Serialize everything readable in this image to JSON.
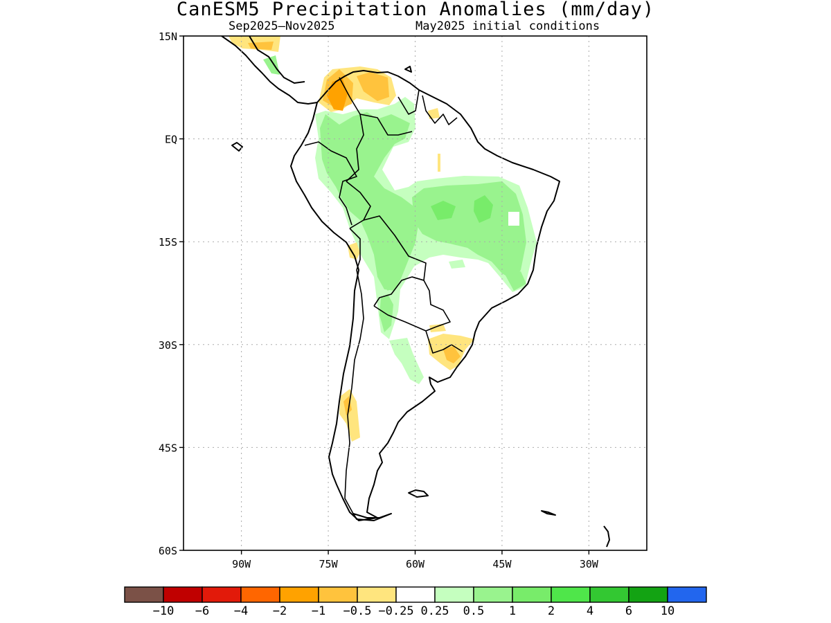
{
  "title": "CanESM5 Precipitation Anomalies (mm/day)",
  "subtitle_left": "Sep2025–Nov2025",
  "subtitle_right": "May2025 initial conditions",
  "map": {
    "region": "South America",
    "lon_range": [
      -100,
      -20
    ],
    "lat_range": [
      -60,
      15
    ],
    "grid": true,
    "lat_ticks": [
      {
        "value": 15,
        "label": "15N"
      },
      {
        "value": 0,
        "label": "EQ"
      },
      {
        "value": -15,
        "label": "15S"
      },
      {
        "value": -30,
        "label": "30S"
      },
      {
        "value": -45,
        "label": "45S"
      },
      {
        "value": -60,
        "label": "60S"
      }
    ],
    "lon_ticks": [
      {
        "value": -90,
        "label": "90W"
      },
      {
        "value": -75,
        "label": "75W"
      },
      {
        "value": -60,
        "label": "60W"
      },
      {
        "value": -45,
        "label": "45W"
      },
      {
        "value": -30,
        "label": "30W"
      }
    ]
  },
  "colorbar": {
    "colors": [
      "#7b5147",
      "#c00000",
      "#e21a0a",
      "#ff6600",
      "#ffa200",
      "#ffc33d",
      "#ffe57e",
      "#ffffff",
      "#c5ffbf",
      "#99f38e",
      "#78ec6a",
      "#4fe64a",
      "#33c832",
      "#13a313",
      "#2266ee"
    ],
    "labels": [
      "−10",
      "−6",
      "−4",
      "−2",
      "−1",
      "−0.5",
      "−0.25",
      "0.25",
      "0.5",
      "1",
      "2",
      "4",
      "6",
      "10"
    ]
  }
}
